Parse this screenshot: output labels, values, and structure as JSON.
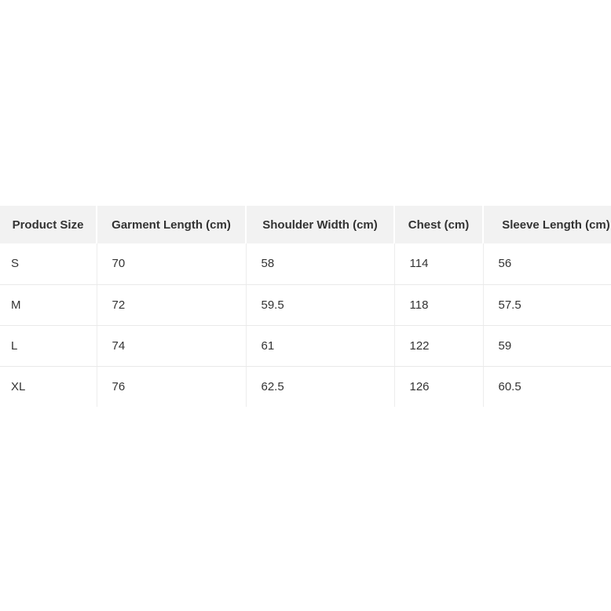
{
  "chart_data": {
    "type": "table",
    "title": "",
    "units": "cm",
    "columns": [
      "Product Size",
      "Garment Length (cm)",
      "Shoulder Width (cm)",
      "Chest (cm)",
      "Sleeve Length (cm)"
    ],
    "rows": [
      [
        "S",
        "70",
        "58",
        "114",
        "56"
      ],
      [
        "M",
        "72",
        "59.5",
        "118",
        "57.5"
      ],
      [
        "L",
        "74",
        "61",
        "122",
        "59"
      ],
      [
        "XL",
        "76",
        "62.5",
        "126",
        "60.5"
      ]
    ],
    "layout": {
      "header_text_align": "center",
      "body_text_align": "left",
      "last_column_clipped_at_right_edge": true
    }
  },
  "colors": {
    "page_background": "#ffffff",
    "header_background": "#f2f2f2",
    "header_divider": "#ffffff",
    "row_border": "#e9e9e9",
    "column_border": "#ededed",
    "text": "#333333"
  }
}
